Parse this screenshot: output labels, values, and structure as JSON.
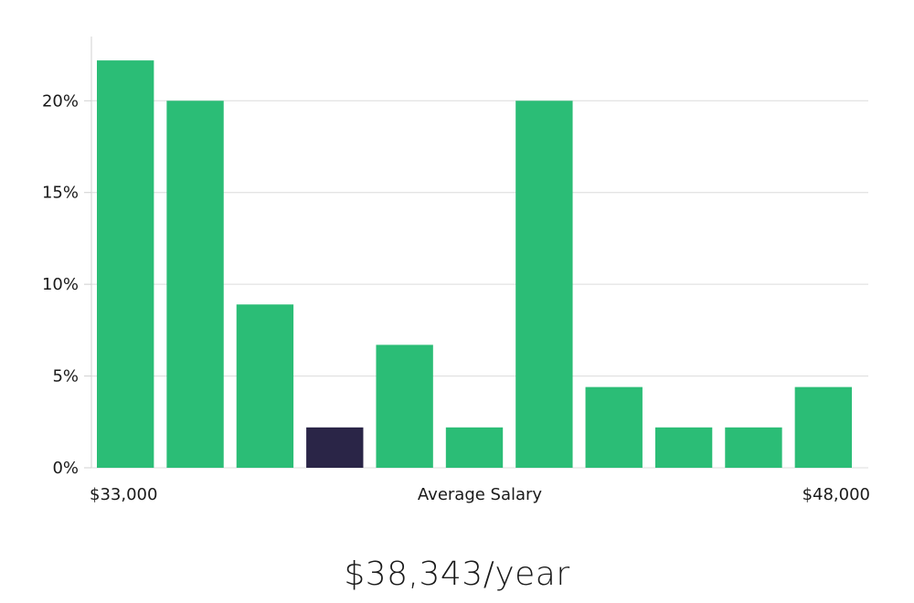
{
  "chart_data": {
    "type": "bar",
    "title": "",
    "xlabel": "Average Salary",
    "ylabel": "",
    "x_range_labels": [
      "$33,000",
      "$48,000"
    ],
    "categories": [
      "bin-1",
      "bin-2",
      "bin-3",
      "bin-4",
      "bin-5",
      "bin-6",
      "bin-7",
      "bin-8",
      "bin-9",
      "bin-10",
      "bin-11"
    ],
    "values": [
      22.2,
      20.0,
      8.9,
      2.2,
      6.7,
      2.2,
      20.0,
      4.4,
      2.2,
      2.2,
      4.4
    ],
    "highlight_index": 3,
    "ylim": [
      0,
      23.5
    ],
    "yticks": [
      0,
      5,
      10,
      15,
      20
    ],
    "ytick_labels": [
      "0%",
      "5%",
      "10%",
      "15%",
      "20%"
    ],
    "grid": true,
    "colors": {
      "bar": "#2bbd76",
      "highlight": "#2a2547"
    }
  },
  "summary": {
    "salary_text": "$38,343/year"
  }
}
